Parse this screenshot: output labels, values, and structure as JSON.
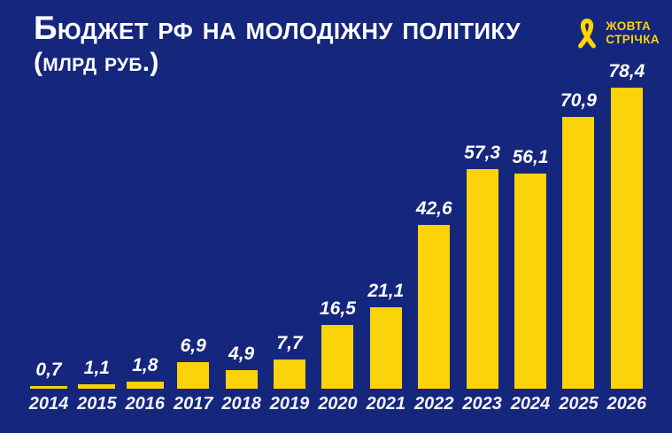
{
  "header": {
    "title": "Бюджет рф на молодіжну політику",
    "subtitle": "(млрд руб.)"
  },
  "logo": {
    "name": "Жовта Стрічка",
    "line1": "ЖОВТА",
    "line2": "СТРІЧКА",
    "icon": "yellow-ribbon-icon"
  },
  "colors": {
    "background": "#15267D",
    "bar": "#FBD30B",
    "text": "#FFFFFF",
    "logo_yellow": "#FFD500"
  },
  "chart_data": {
    "type": "bar",
    "title": "Бюджет рф на молодіжну політику (млрд руб.)",
    "categories": [
      "2014",
      "2015",
      "2016",
      "2017",
      "2018",
      "2019",
      "2020",
      "2021",
      "2022",
      "2023",
      "2024",
      "2025",
      "2026"
    ],
    "values": [
      0.7,
      1.1,
      1.8,
      6.9,
      4.9,
      7.7,
      16.5,
      21.1,
      42.6,
      57.3,
      56.1,
      70.9,
      78.4
    ],
    "value_labels": [
      "0,7",
      "1,1",
      "1,8",
      "6,9",
      "4,9",
      "7,7",
      "16,5",
      "21,1",
      "42,6",
      "57,3",
      "56,1",
      "70,9",
      "78,4"
    ],
    "xlabel": "",
    "ylabel": "млрд руб.",
    "ylim": [
      0,
      78.4
    ],
    "grid": false,
    "legend": null,
    "bar_color": "#FBD30B",
    "label_position": "above-bar"
  }
}
